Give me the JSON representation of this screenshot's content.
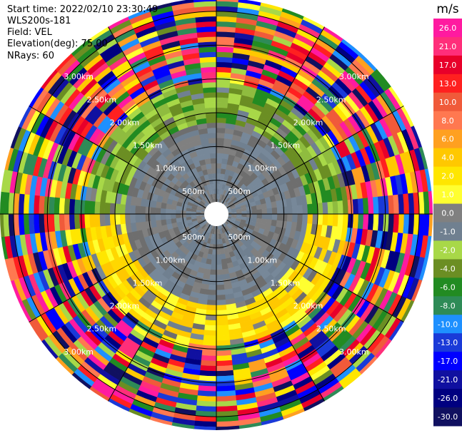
{
  "header": {
    "start_time": "Start time: 2022/02/10 23:30:49",
    "site": "WLS200s-181",
    "field": "Field: VEL",
    "elevation": "Elevation(deg): 75.00",
    "nrays": "NRays: 60"
  },
  "chart_data": {
    "type": "heatmap",
    "projection": "polar-ppi",
    "field": "VEL",
    "units": "m/s",
    "n_rays": 60,
    "range_max_km": 3.2,
    "range_rings_km": [
      0.5,
      1.0,
      1.5,
      2.0,
      2.5,
      3.0
    ],
    "range_ring_labels": [
      "500m",
      "1.00km",
      "1.50km",
      "2.00km",
      "2.50km",
      "3.00km"
    ],
    "spoke_angles_deg": [
      0,
      30,
      60,
      90,
      120,
      150,
      180,
      210,
      240,
      270,
      300,
      330
    ],
    "colorbar": {
      "unit": "m/s",
      "tick_labels": [
        "26.0",
        "21.0",
        "17.0",
        "13.0",
        "10.0",
        "8.0",
        "6.0",
        "4.0",
        "2.0",
        "1.0",
        "0.0",
        "-1.0",
        "-2.0",
        "-4.0",
        "-6.0",
        "-8.0",
        "-10.0",
        "-13.0",
        "-17.0",
        "-21.0",
        "-26.0",
        "-30.0"
      ],
      "colors": [
        "#ff1aa0",
        "#ff2e7a",
        "#e8002a",
        "#ff2020",
        "#f05a3a",
        "#ff7850",
        "#ffa020",
        "#ffc800",
        "#ffe600",
        "#ffff30",
        "#808080",
        "#708090",
        "#a8d848",
        "#6b8e23",
        "#228b22",
        "#2e8b57",
        "#1e90ff",
        "#1a3ad8",
        "#0000ff",
        "#1010a0",
        "#000080",
        "#101060"
      ]
    },
    "regions": [
      {
        "from_km": 0.0,
        "to_km": 0.2,
        "value": "no data"
      },
      {
        "from_km": 0.2,
        "to_km": 1.35,
        "value_range_ms": [
          -1.0,
          0.0
        ]
      },
      {
        "from_km": 1.35,
        "to_km": 1.95,
        "upper_half": "-2.0 to -4.0",
        "lower_half": "1.0 to 2.0"
      },
      {
        "from_km": 1.95,
        "to_km": 3.2,
        "value_range_ms": [
          -30.0,
          26.0
        ]
      }
    ]
  }
}
